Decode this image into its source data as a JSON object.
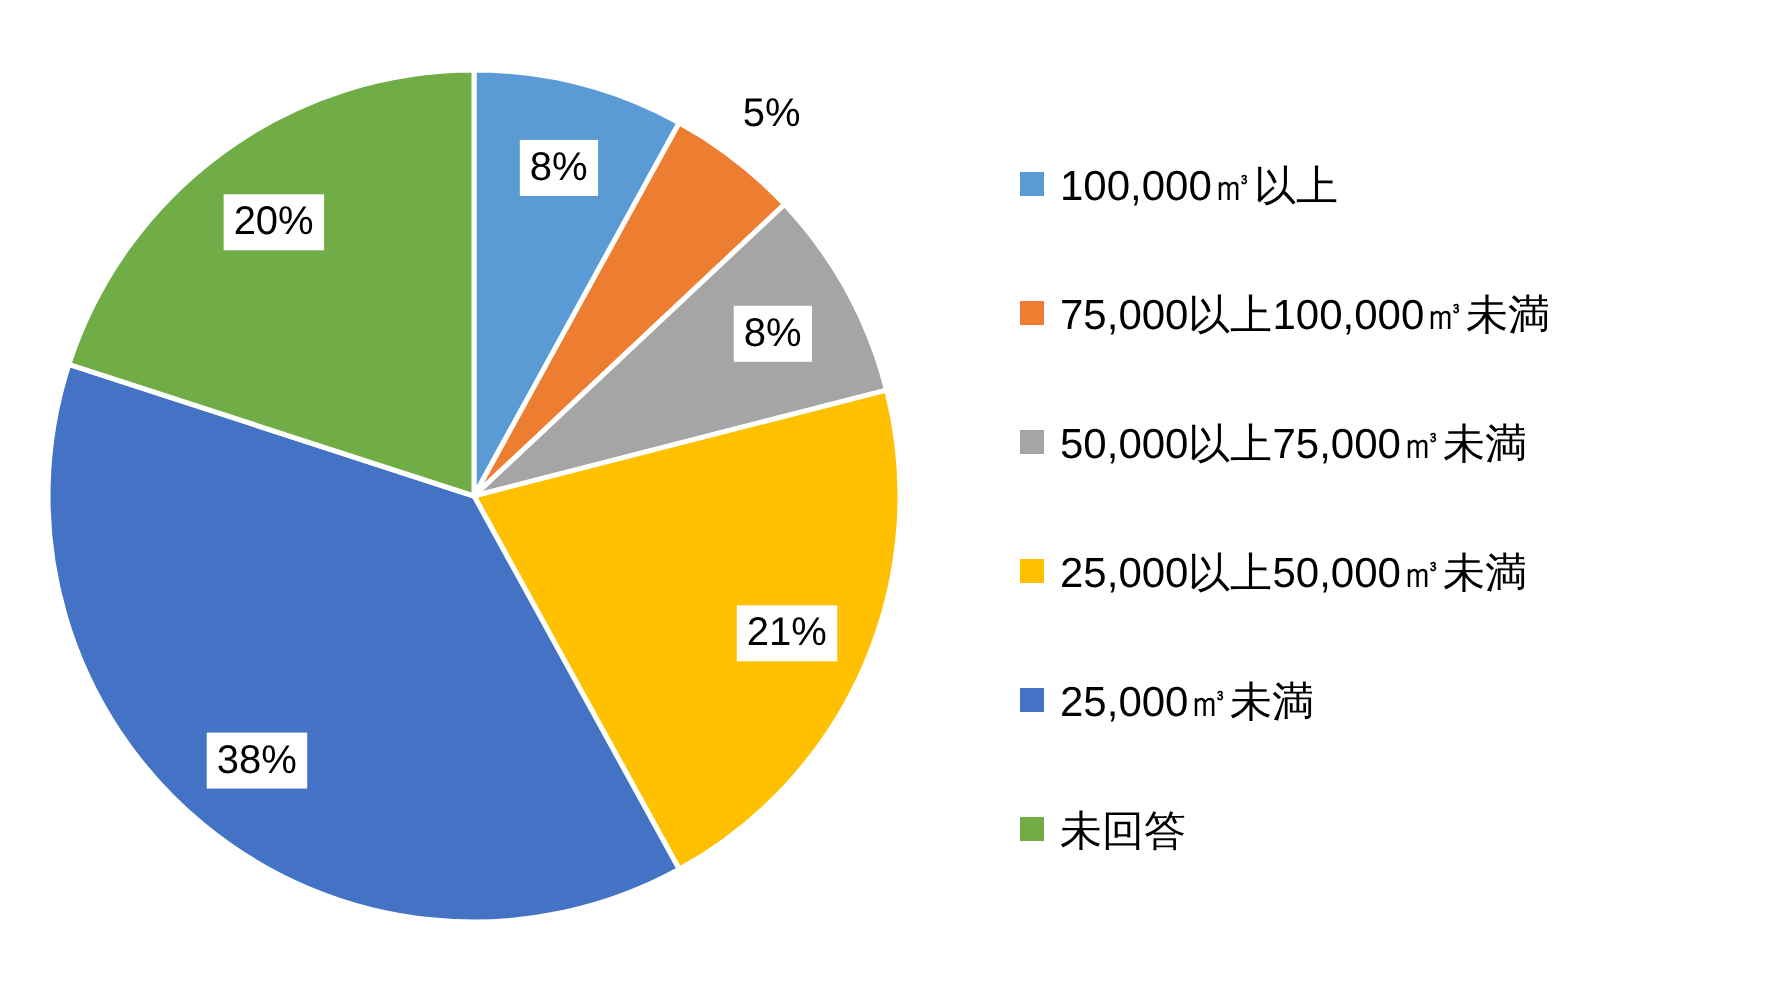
{
  "chart_data": {
    "type": "pie",
    "categories": [
      "100,000㎥以上",
      "75,000以上100,000㎥未満",
      "50,000以上75,000㎥未満",
      "25,000以上50,000㎥未満",
      "25,000㎥未満",
      "未回答"
    ],
    "values": [
      8,
      5,
      8,
      21,
      38,
      20
    ],
    "colors": [
      "#5b9bd5",
      "#ed7d31",
      "#a5a5a5",
      "#ffc000",
      "#4472c4",
      "#70ad47"
    ],
    "value_labels": [
      "8%",
      "5%",
      "8%",
      "21%",
      "38%",
      "20%"
    ],
    "legend": "right"
  }
}
